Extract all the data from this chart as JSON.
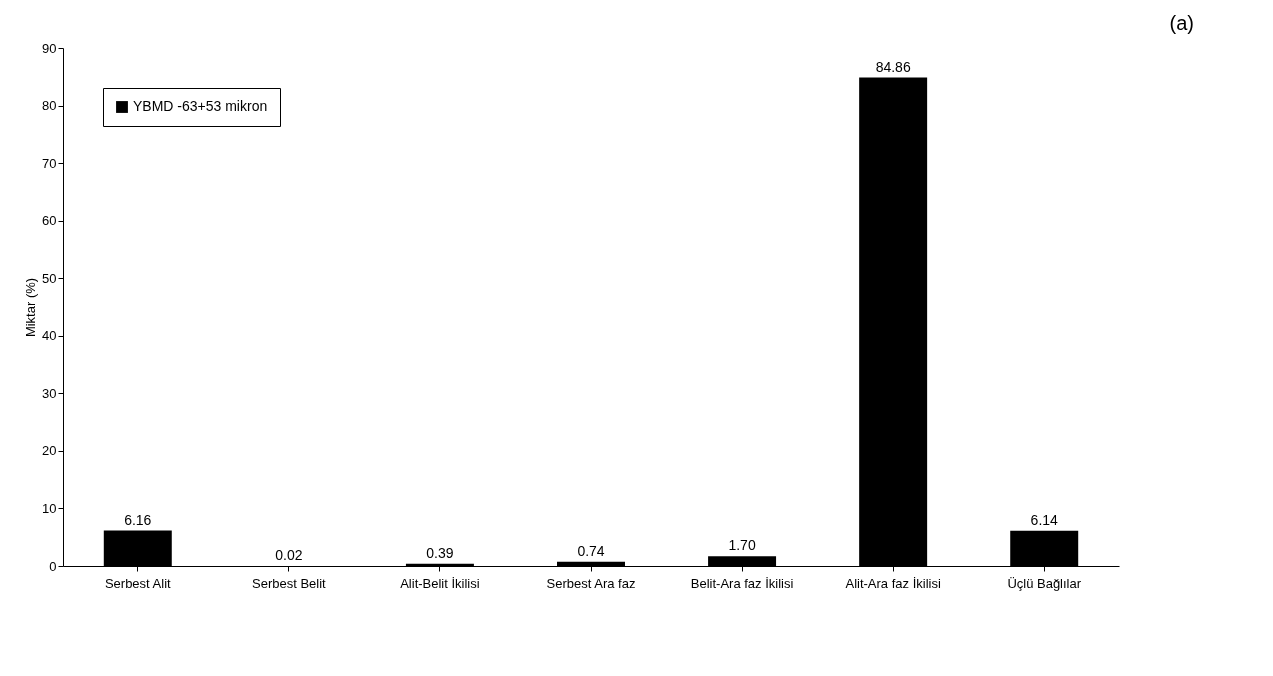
{
  "chart_data": {
    "type": "bar",
    "title": "(a)",
    "ylabel": "Miktar (%)",
    "categories": [
      "Serbest Alit",
      "Serbest Belit",
      "Alit-Belit İkilisi",
      "Serbest Ara faz",
      "Belit-Ara faz İkilisi",
      "Alit-Ara faz İkilisi",
      "Üçlü Bağlılar"
    ],
    "series": [
      {
        "name": "YBMD -63+53 mikron",
        "color": "#000000",
        "values": [
          6.16,
          0.02,
          0.39,
          0.74,
          1.7,
          84.86,
          6.14
        ],
        "value_labels": [
          "6.16",
          "0.02",
          "0.39",
          "0.74",
          "1.70",
          "84.86",
          "6.14"
        ]
      }
    ],
    "ylim": [
      0,
      90
    ],
    "yticks": [
      0,
      10,
      20,
      30,
      40,
      50,
      60,
      70,
      80,
      90
    ],
    "grid": false,
    "legend": "top left"
  }
}
